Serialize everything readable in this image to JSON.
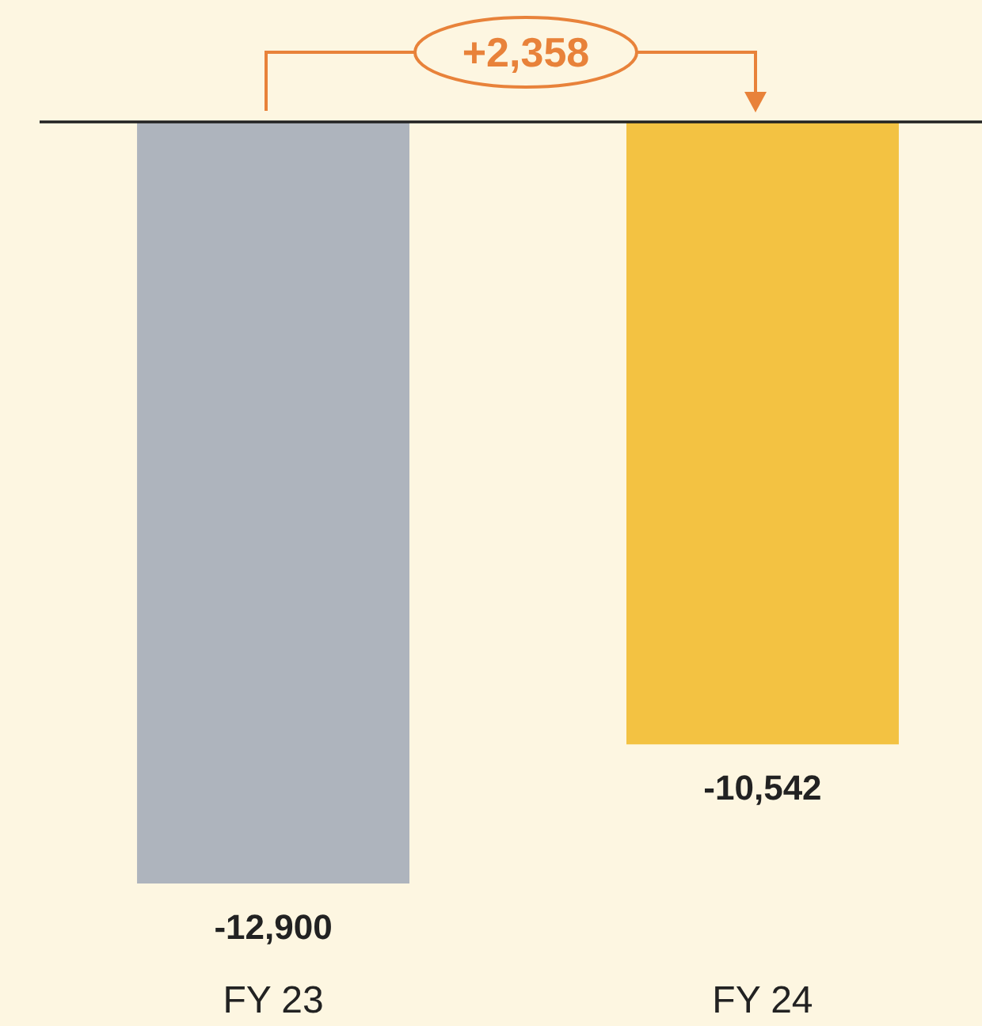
{
  "chart_data": {
    "type": "bar",
    "categories": [
      "FY 23",
      "FY 24"
    ],
    "colors": [
      "#aeb4bd",
      "#f3c242"
    ],
    "values": [
      -12900,
      -10542
    ],
    "value_labels": [
      "-12,900",
      "-10,542"
    ],
    "annotations": [
      "+2,358"
    ]
  }
}
